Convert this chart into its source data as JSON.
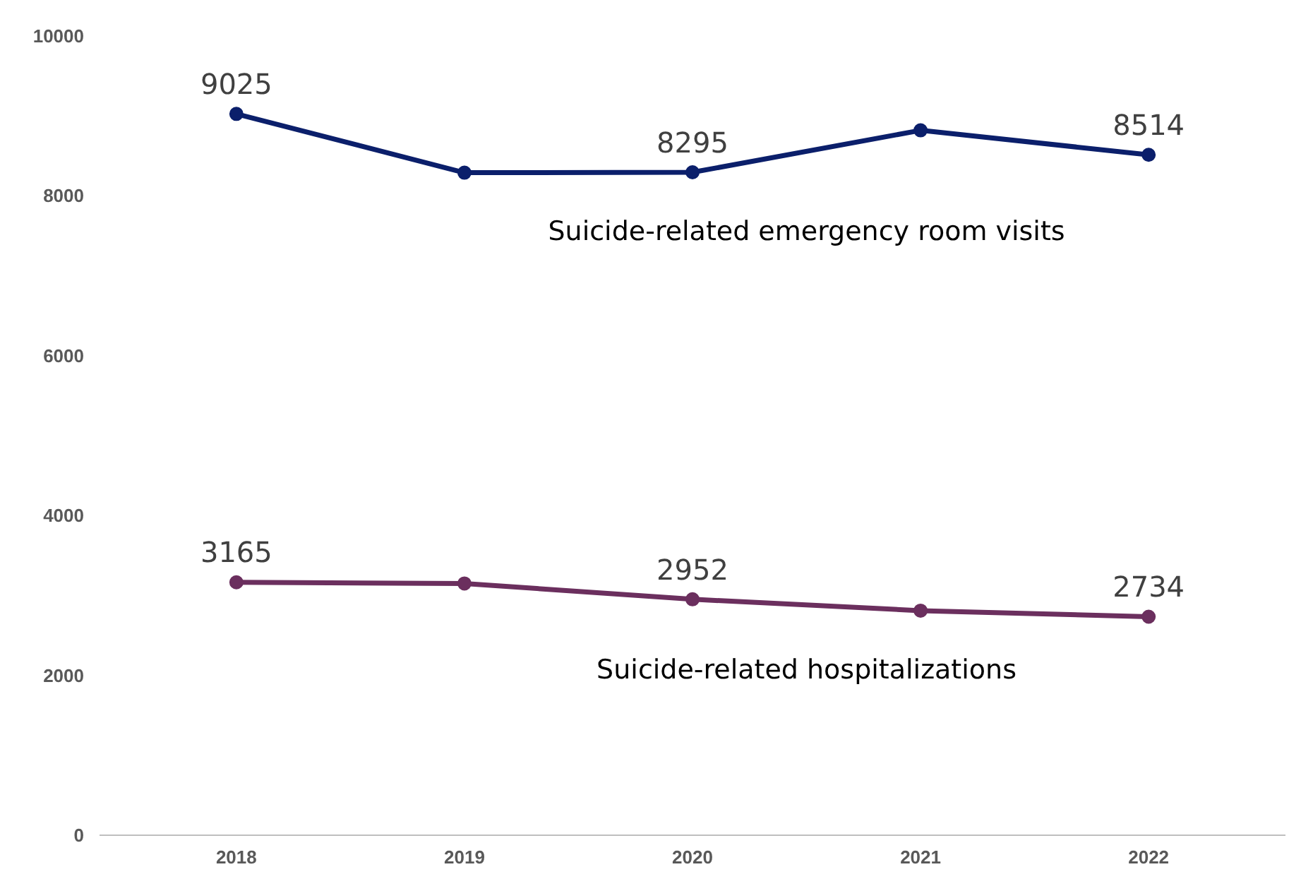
{
  "chart_data": {
    "type": "line",
    "categories": [
      "2018",
      "2019",
      "2020",
      "2021",
      "2022"
    ],
    "series": [
      {
        "name": "Suicide-related emergency room visits",
        "color": "#0b1f6b",
        "values": [
          9025,
          8290,
          8295,
          8820,
          8514
        ],
        "value_labels": [
          "9025",
          null,
          "8295",
          null,
          "8514"
        ]
      },
      {
        "name": "Suicide-related hospitalizations",
        "color": "#6b2f5e",
        "values": [
          3165,
          3150,
          2952,
          2810,
          2734
        ],
        "value_labels": [
          "3165",
          null,
          "2952",
          null,
          "2734"
        ]
      }
    ],
    "ylim": [
      0,
      10000
    ],
    "yticks": [
      0,
      2000,
      4000,
      6000,
      8000,
      10000
    ],
    "grid": false,
    "marker": "circle",
    "line_style": "solid",
    "legend": false
  }
}
